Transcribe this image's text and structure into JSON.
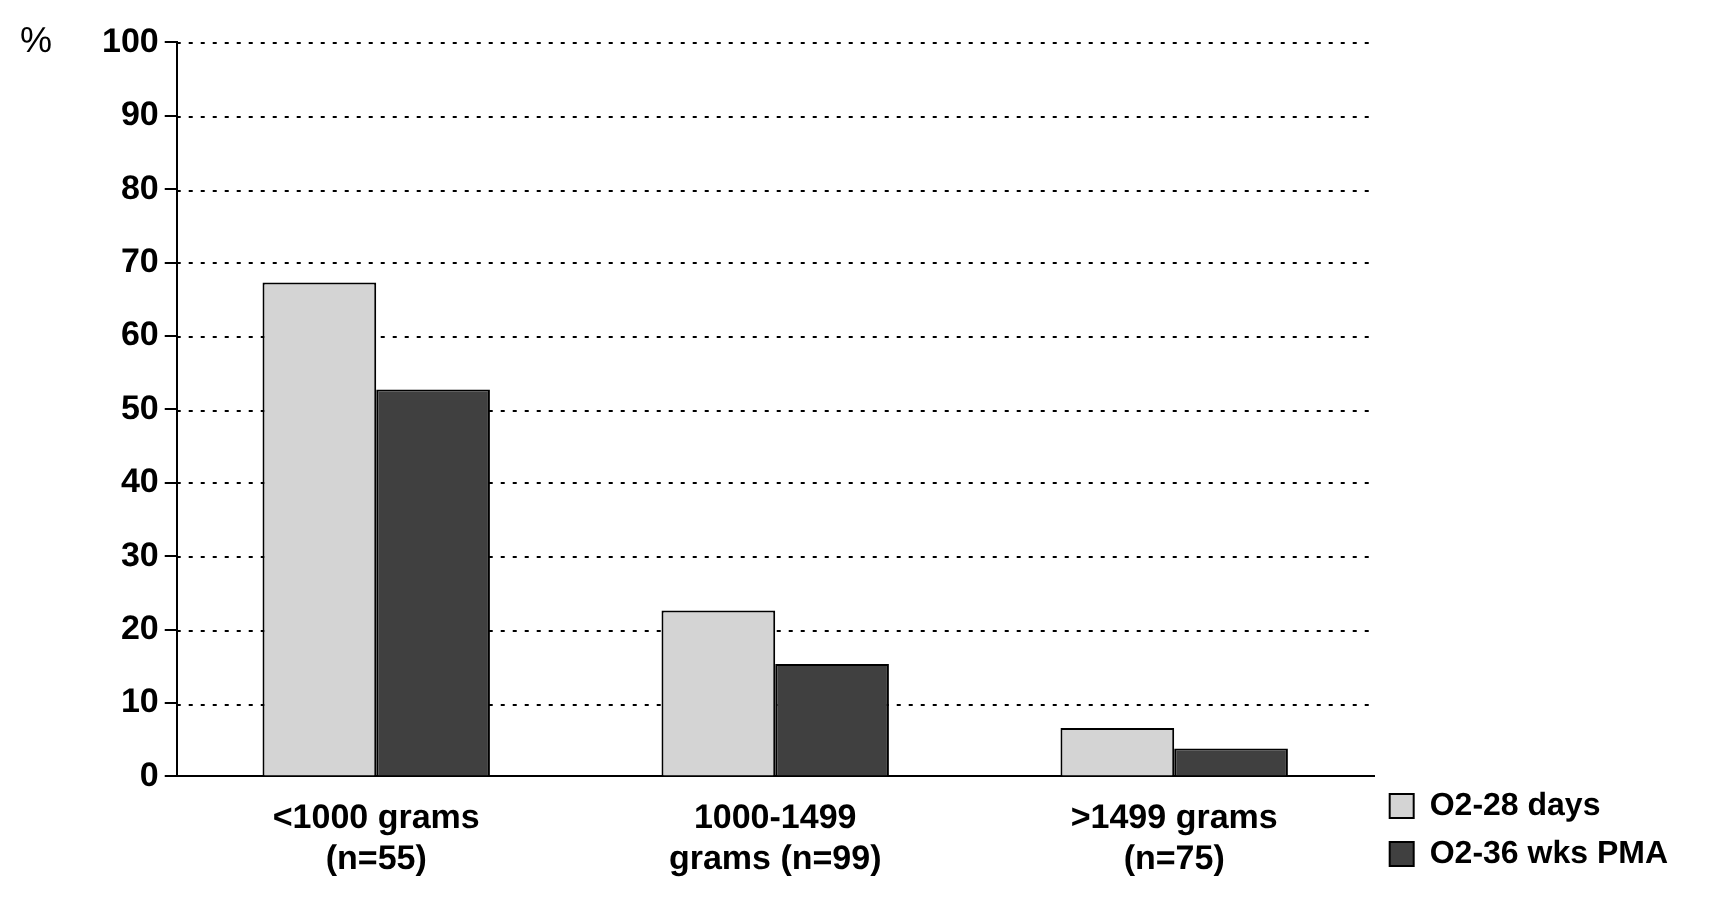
{
  "chart_data": {
    "type": "bar",
    "ylabel": "%",
    "categories": [
      "<1000 grams\n(n=55)",
      "1000-1499\ngrams (n=99)",
      ">1499 grams\n(n=75)"
    ],
    "series": [
      {
        "name": "O2-28 days",
        "color": "#d4d4d4",
        "values": [
          67.3,
          22.6,
          6.6
        ]
      },
      {
        "name": "O2-36 wks PMA",
        "color": "#404040",
        "values": [
          52.7,
          15.3,
          3.8
        ]
      }
    ],
    "ylim": [
      0,
      100
    ],
    "yticks": [
      0,
      10,
      20,
      30,
      40,
      50,
      60,
      70,
      80,
      90,
      100
    ],
    "grid": "y",
    "line_style": "dotted",
    "legend": "right"
  }
}
